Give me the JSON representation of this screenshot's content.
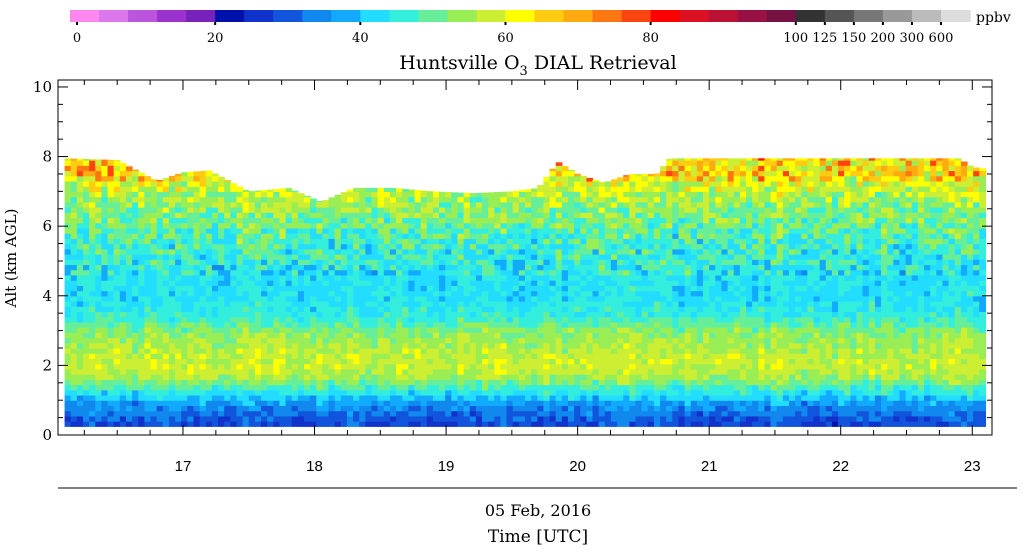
{
  "chart_data": {
    "type": "heatmap",
    "title_pre": "Huntsville O",
    "title_sub": "3",
    "title_post": " DIAL Retrieval",
    "xlabel": "Time [UTC]",
    "ylabel": "Alt (km AGL)",
    "date_label": "05 Feb, 2016",
    "colorbar_unit": "ppbv",
    "xlim": [
      16.05,
      23.15
    ],
    "ylim": [
      0,
      10.2
    ],
    "x_ticks": [
      "17",
      "18",
      "19",
      "20",
      "21",
      "22",
      "23"
    ],
    "y_ticks": [
      "0",
      "2",
      "4",
      "6",
      "8",
      "10"
    ],
    "colorbar_labels": [
      "0",
      "20",
      "40",
      "60",
      "80",
      "100",
      "125",
      "150",
      "200",
      "300",
      "600"
    ],
    "colorbar_colors": [
      "#ff88ee",
      "#dd77ee",
      "#bb55dd",
      "#9933cc",
      "#7722bb",
      "#0011aa",
      "#1133cc",
      "#1155dd",
      "#1188ee",
      "#11aaff",
      "#22ddff",
      "#33eedd",
      "#66ee99",
      "#99ee55",
      "#ccee33",
      "#ffff00",
      "#ffcc11",
      "#ffaa11",
      "#ff7711",
      "#ff4411",
      "#ff0000",
      "#dd1122",
      "#bb1133",
      "#991144",
      "#771144",
      "#333333",
      "#555555",
      "#777777",
      "#999999",
      "#bbbbbb",
      "#dddddd"
    ],
    "profile_altitudes_km": [
      0.25,
      0.6,
      0.95,
      1.3,
      1.65,
      2.0,
      2.35,
      2.7,
      3.05,
      3.4,
      3.75,
      4.1,
      4.45,
      4.8,
      5.15,
      5.5,
      5.85,
      6.2,
      6.55,
      6.9,
      7.25,
      7.6
    ],
    "profile_ozone_ppbv": [
      28,
      32,
      37,
      46,
      55,
      58,
      57,
      55,
      52,
      46,
      44,
      43,
      43,
      44,
      46,
      47,
      49,
      51,
      53,
      56,
      59,
      62
    ],
    "data_top_km": {
      "x": [
        16.1,
        16.5,
        16.8,
        17.0,
        17.2,
        17.5,
        17.8,
        18.05,
        18.3,
        18.6,
        18.9,
        19.2,
        19.5,
        19.7,
        19.85,
        20.0,
        20.2,
        20.4,
        20.6,
        20.7,
        21.0,
        21.5,
        22.0,
        22.5,
        22.9,
        23.0,
        23.1
      ],
      "top": [
        7.95,
        7.9,
        7.3,
        7.55,
        7.6,
        7.0,
        7.1,
        6.7,
        7.1,
        7.1,
        7.0,
        6.95,
        7.0,
        7.1,
        7.85,
        7.5,
        7.25,
        7.5,
        7.5,
        7.95,
        7.95,
        7.95,
        7.95,
        7.95,
        7.95,
        7.7,
        7.65
      ]
    },
    "data_bottom_km": 0.25
  }
}
